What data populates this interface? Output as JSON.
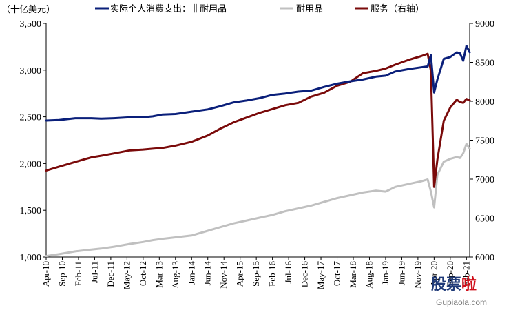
{
  "chart_data": {
    "type": "line",
    "unit_label": "（十亿美元）",
    "y_left": {
      "min": 1000,
      "max": 3500,
      "ticks": [
        "1,000",
        "1,500",
        "2,000",
        "2,500",
        "3,000",
        "3,500"
      ]
    },
    "y_right": {
      "min": 6000,
      "max": 9000,
      "ticks": [
        "6000",
        "6500",
        "7000",
        "7500",
        "8000",
        "8500",
        "9000"
      ]
    },
    "x_ticks": [
      "Apr-10",
      "Sep-10",
      "Feb-11",
      "Jul-11",
      "Dec-11",
      "May-12",
      "Oct-12",
      "Mar-13",
      "Aug-13",
      "Jan-14",
      "Jun-14",
      "Nov-14",
      "Apr-15",
      "Sep-15",
      "Feb-16",
      "Jul-16",
      "Dec-16",
      "May-17",
      "Oct-17",
      "Mar-18",
      "Aug-18",
      "Jan-19",
      "Jun-19",
      "Nov-19",
      "Apr-20",
      "Sep-20",
      "Feb-21"
    ],
    "x_start": "2010-04",
    "x_end": "2021-03",
    "series": [
      {
        "name": "实际个人消费支出：非耐用品",
        "axis": "left",
        "color": "#0a1f7a",
        "points": [
          [
            "2010-04",
            2460
          ],
          [
            "2010-08",
            2465
          ],
          [
            "2011-01",
            2485
          ],
          [
            "2011-06",
            2485
          ],
          [
            "2011-09",
            2480
          ],
          [
            "2012-01",
            2485
          ],
          [
            "2012-06",
            2495
          ],
          [
            "2012-10",
            2495
          ],
          [
            "2013-01",
            2505
          ],
          [
            "2013-04",
            2525
          ],
          [
            "2013-08",
            2530
          ],
          [
            "2014-01",
            2555
          ],
          [
            "2014-06",
            2580
          ],
          [
            "2014-10",
            2615
          ],
          [
            "2015-02",
            2655
          ],
          [
            "2015-06",
            2675
          ],
          [
            "2015-10",
            2700
          ],
          [
            "2016-02",
            2735
          ],
          [
            "2016-06",
            2750
          ],
          [
            "2016-10",
            2770
          ],
          [
            "2017-02",
            2780
          ],
          [
            "2017-06",
            2820
          ],
          [
            "2017-10",
            2855
          ],
          [
            "2018-02",
            2880
          ],
          [
            "2018-06",
            2900
          ],
          [
            "2018-10",
            2930
          ],
          [
            "2019-01",
            2940
          ],
          [
            "2019-04",
            2985
          ],
          [
            "2019-08",
            3010
          ],
          [
            "2019-12",
            3030
          ],
          [
            "2020-02",
            3040
          ],
          [
            "2020-03",
            3160
          ],
          [
            "2020-04",
            2760
          ],
          [
            "2020-05",
            2900
          ],
          [
            "2020-07",
            3120
          ],
          [
            "2020-09",
            3140
          ],
          [
            "2020-11",
            3190
          ],
          [
            "2020-12",
            3180
          ],
          [
            "2021-01",
            3100
          ],
          [
            "2021-02",
            3260
          ],
          [
            "2021-03",
            3190
          ]
        ]
      },
      {
        "name": "耐用品",
        "axis": "left",
        "color": "#c0c0c0",
        "points": [
          [
            "2010-04",
            1010
          ],
          [
            "2010-08",
            1030
          ],
          [
            "2011-01",
            1060
          ],
          [
            "2011-06",
            1080
          ],
          [
            "2011-09",
            1090
          ],
          [
            "2012-01",
            1110
          ],
          [
            "2012-06",
            1140
          ],
          [
            "2012-10",
            1160
          ],
          [
            "2013-01",
            1180
          ],
          [
            "2013-04",
            1195
          ],
          [
            "2013-08",
            1210
          ],
          [
            "2014-01",
            1230
          ],
          [
            "2014-06",
            1280
          ],
          [
            "2014-10",
            1320
          ],
          [
            "2015-02",
            1360
          ],
          [
            "2015-06",
            1390
          ],
          [
            "2015-10",
            1420
          ],
          [
            "2016-02",
            1450
          ],
          [
            "2016-06",
            1490
          ],
          [
            "2016-10",
            1520
          ],
          [
            "2017-02",
            1550
          ],
          [
            "2017-06",
            1590
          ],
          [
            "2017-10",
            1630
          ],
          [
            "2018-02",
            1660
          ],
          [
            "2018-06",
            1690
          ],
          [
            "2018-10",
            1710
          ],
          [
            "2019-01",
            1700
          ],
          [
            "2019-04",
            1750
          ],
          [
            "2019-08",
            1780
          ],
          [
            "2019-12",
            1810
          ],
          [
            "2020-02",
            1830
          ],
          [
            "2020-03",
            1700
          ],
          [
            "2020-04",
            1530
          ],
          [
            "2020-05",
            1880
          ],
          [
            "2020-07",
            2020
          ],
          [
            "2020-09",
            2050
          ],
          [
            "2020-11",
            2070
          ],
          [
            "2020-12",
            2060
          ],
          [
            "2021-01",
            2110
          ],
          [
            "2021-02",
            2210
          ],
          [
            "2021-03",
            2160
          ]
        ]
      },
      {
        "name": "服务（右轴）",
        "axis": "right",
        "color": "#7a0a0a",
        "points": [
          [
            "2010-04",
            7110
          ],
          [
            "2010-08",
            7160
          ],
          [
            "2011-01",
            7220
          ],
          [
            "2011-06",
            7280
          ],
          [
            "2011-09",
            7300
          ],
          [
            "2012-01",
            7330
          ],
          [
            "2012-06",
            7370
          ],
          [
            "2012-10",
            7380
          ],
          [
            "2013-01",
            7390
          ],
          [
            "2013-04",
            7400
          ],
          [
            "2013-08",
            7430
          ],
          [
            "2014-01",
            7480
          ],
          [
            "2014-06",
            7560
          ],
          [
            "2014-10",
            7650
          ],
          [
            "2015-02",
            7730
          ],
          [
            "2015-06",
            7790
          ],
          [
            "2015-10",
            7850
          ],
          [
            "2016-02",
            7900
          ],
          [
            "2016-06",
            7950
          ],
          [
            "2016-10",
            7980
          ],
          [
            "2017-02",
            8060
          ],
          [
            "2017-06",
            8110
          ],
          [
            "2017-10",
            8200
          ],
          [
            "2018-02",
            8250
          ],
          [
            "2018-06",
            8360
          ],
          [
            "2018-10",
            8390
          ],
          [
            "2019-01",
            8420
          ],
          [
            "2019-04",
            8470
          ],
          [
            "2019-08",
            8530
          ],
          [
            "2019-12",
            8580
          ],
          [
            "2020-02",
            8610
          ],
          [
            "2020-03",
            8390
          ],
          [
            "2020-04",
            6900
          ],
          [
            "2020-05",
            7250
          ],
          [
            "2020-07",
            7750
          ],
          [
            "2020-09",
            7920
          ],
          [
            "2020-11",
            8020
          ],
          [
            "2020-12",
            7990
          ],
          [
            "2021-01",
            7980
          ],
          [
            "2021-02",
            8030
          ],
          [
            "2021-03",
            8010
          ]
        ]
      }
    ]
  },
  "watermark": {
    "brand": "股票啦",
    "url": "Gupiaola.com"
  }
}
